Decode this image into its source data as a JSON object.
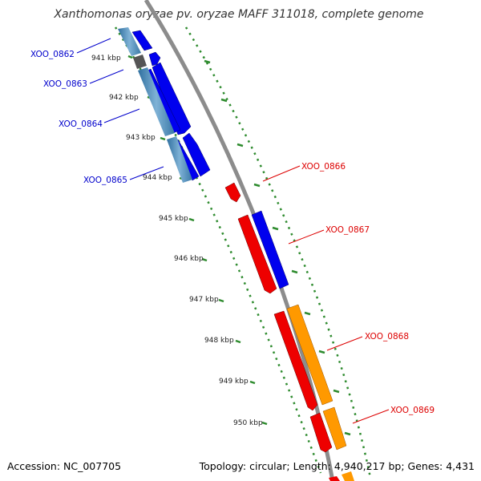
{
  "title": "Xanthomonas oryzae pv. oryzae MAFF 311018, complete genome",
  "footer": {
    "accession": "Accession: NC_007705",
    "summary": "Topology: circular; Length: 4,940,217 bp; Genes: 4,431"
  },
  "colors": {
    "backbone": "#8c8c8c",
    "ruler_dots": "#2e8b2e",
    "forward_gene": "#0000ee",
    "reverse_gene": "#ee0000",
    "rna_gene": "#ff9900",
    "left_label": "#0000cc",
    "right_label": "#dd0000"
  },
  "scale_labels": [
    "941 kbp",
    "942 kbp",
    "943 kbp",
    "944 kbp",
    "945 kbp",
    "946 kbp",
    "947 kbp",
    "948 kbp",
    "949 kbp",
    "950 kbp"
  ],
  "left_genes": [
    {
      "label": "XOO_0862"
    },
    {
      "label": "XOO_0863"
    },
    {
      "label": "XOO_0864"
    },
    {
      "label": "XOO_0865"
    }
  ],
  "right_genes": [
    {
      "label": "XOO_0866"
    },
    {
      "label": "XOO_0867"
    },
    {
      "label": "XOO_0868"
    },
    {
      "label": "XOO_0869"
    }
  ]
}
